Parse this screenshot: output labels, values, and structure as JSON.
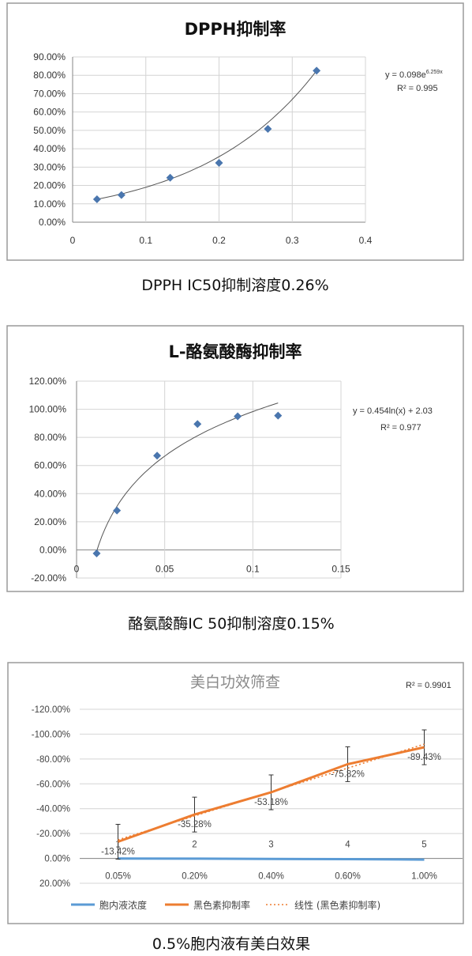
{
  "chart_data": [
    {
      "type": "scatter",
      "title": "DPPH抑制率",
      "x": [
        0.0333,
        0.0667,
        0.1333,
        0.2,
        0.2667,
        0.3333
      ],
      "y": [
        12.5,
        14.8,
        24.2,
        32.3,
        50.8,
        82.5
      ],
      "xlim": [
        0,
        0.4
      ],
      "ylim": [
        0,
        90
      ],
      "x_ticks": [
        "0",
        "0.1",
        "0.2",
        "0.3",
        "0.4"
      ],
      "y_ticks": [
        "0.00%",
        "10.00%",
        "20.00%",
        "30.00%",
        "40.00%",
        "50.00%",
        "60.00%",
        "70.00%",
        "80.00%",
        "90.00%"
      ],
      "trendline": "exponential",
      "equation": "y = 0.098e",
      "equation_exp": "6.259x",
      "r2": "R² = 0.995",
      "grid": true,
      "marker_color": "#4a76ae",
      "caption": "DPPH IC50抑制溶度0.26%"
    },
    {
      "type": "scatter",
      "title": "L-酪氨酸酶抑制率",
      "x": [
        0.0114,
        0.0229,
        0.0457,
        0.0686,
        0.0914,
        0.1143
      ],
      "y": [
        -2.5,
        28.0,
        67.0,
        89.5,
        95.0,
        95.5
      ],
      "xlim": [
        0,
        0.15
      ],
      "ylim": [
        -20,
        120
      ],
      "x_ticks": [
        "0",
        "0.05",
        "0.1",
        "0.15"
      ],
      "y_ticks": [
        "-20.00%",
        "0.00%",
        "20.00%",
        "40.00%",
        "60.00%",
        "80.00%",
        "100.00%",
        "120.00%"
      ],
      "trendline": "logarithmic",
      "equation": "y = 0.454ln(x) + 2.03",
      "r2": "R² = 0.977",
      "grid": true,
      "marker_color": "#4a76ae",
      "caption": "酪氨酸酶IC 50抑制溶度0.15%"
    },
    {
      "type": "line",
      "title": "美白功效筛查",
      "categories": [
        "0.05%",
        "0.20%",
        "0.40%",
        "0.60%",
        "1.00%"
      ],
      "x_index_labels": [
        "1",
        "2",
        "3",
        "4",
        "5"
      ],
      "ylim": [
        20,
        -120
      ],
      "y_reversed": true,
      "y_ticks": [
        "-120.00%",
        "-100.00%",
        "-80.00%",
        "-60.00%",
        "-40.00%",
        "-20.00%",
        "0.00%",
        "20.00%"
      ],
      "series": [
        {
          "name": "胞内液浓度",
          "values": [
            0.05,
            0.2,
            0.4,
            0.6,
            1.0
          ],
          "color": "#5b9bd5"
        },
        {
          "name": "黑色素抑制率",
          "values": [
            -13.42,
            -35.28,
            -53.18,
            -75.82,
            -89.43
          ],
          "labels": [
            "-13.42%",
            "-35.28%",
            "-53.18%",
            "-75.82%",
            "-89.43%"
          ],
          "error": [
            14,
            14,
            14,
            14,
            14
          ],
          "color": "#ed7d31"
        },
        {
          "name": "线性 (黑色素抑制率)",
          "trend_of": "黑色素抑制率",
          "style": "dotted",
          "color": "#ed7d31"
        }
      ],
      "r2": "R² = 0.9901",
      "grid": true,
      "caption": "0.5%胞内液有美白效果"
    }
  ]
}
